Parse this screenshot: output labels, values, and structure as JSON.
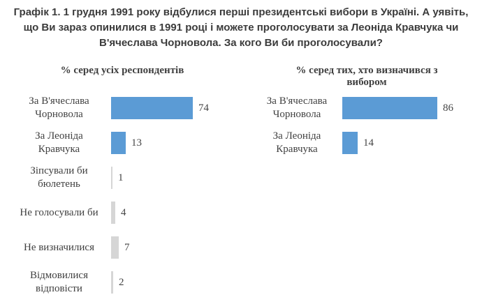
{
  "page": {
    "title": "Графік 1. 1 грудня 1991 року відбулися перші президентські вибори в Україні. А уявіть, що Ви зараз опинилися в 1991 році і можете проголосувати за Леоніда Кравчука чи В'ячеслава Чорновола. За кого Ви би проголосували?"
  },
  "colors": {
    "bar_blue": "#5B9BD5",
    "bar_gray": "#D6D6D6",
    "title_text": "#3B3B3B",
    "chart_text": "#3F3F3F"
  },
  "chart_data": [
    {
      "type": "bar",
      "orientation": "horizontal",
      "title": "% серед усіх респондентів",
      "title_display": "% серед усіх респондентів",
      "categories": [
        "За В'ячеслава Чорновола",
        "За Леоніда Кравчука",
        "Зіпсували би бюлетень",
        "Не голосували би",
        "Не визначилися",
        "Відмовилися відповісти"
      ],
      "values": [
        74,
        13,
        1,
        4,
        7,
        2
      ],
      "xlim": [
        0,
        100
      ],
      "grid": false,
      "legend": "none",
      "rows": [
        {
          "label": "За В'ячеслава\nЧорновола",
          "value": 74,
          "color": "#5B9BD5"
        },
        {
          "label": "За Леоніда\nКравчука",
          "value": 13,
          "color": "#5B9BD5"
        },
        {
          "label": "Зіпсували би\nбюлетень",
          "value": 1,
          "color": "#D6D6D6"
        },
        {
          "label": "Не голосували би",
          "value": 4,
          "color": "#D6D6D6"
        },
        {
          "label": "Не визначилися",
          "value": 7,
          "color": "#D6D6D6"
        },
        {
          "label": "Відмовилися\nвідповісти",
          "value": 2,
          "color": "#D6D6D6"
        }
      ]
    },
    {
      "type": "bar",
      "orientation": "horizontal",
      "title": "% серед тих, хто визначився з вибором",
      "title_display": "% серед тих, хто визначився з\nвибором",
      "categories": [
        "За В'ячеслава Чорновола",
        "За Леоніда Кравчука"
      ],
      "values": [
        86,
        14
      ],
      "xlim": [
        0,
        100
      ],
      "grid": false,
      "legend": "none",
      "rows": [
        {
          "label": "За В'ячеслава\nЧорновола",
          "value": 86,
          "color": "#5B9BD5"
        },
        {
          "label": "За Леоніда\nКравчука",
          "value": 14,
          "color": "#5B9BD5"
        }
      ]
    }
  ]
}
